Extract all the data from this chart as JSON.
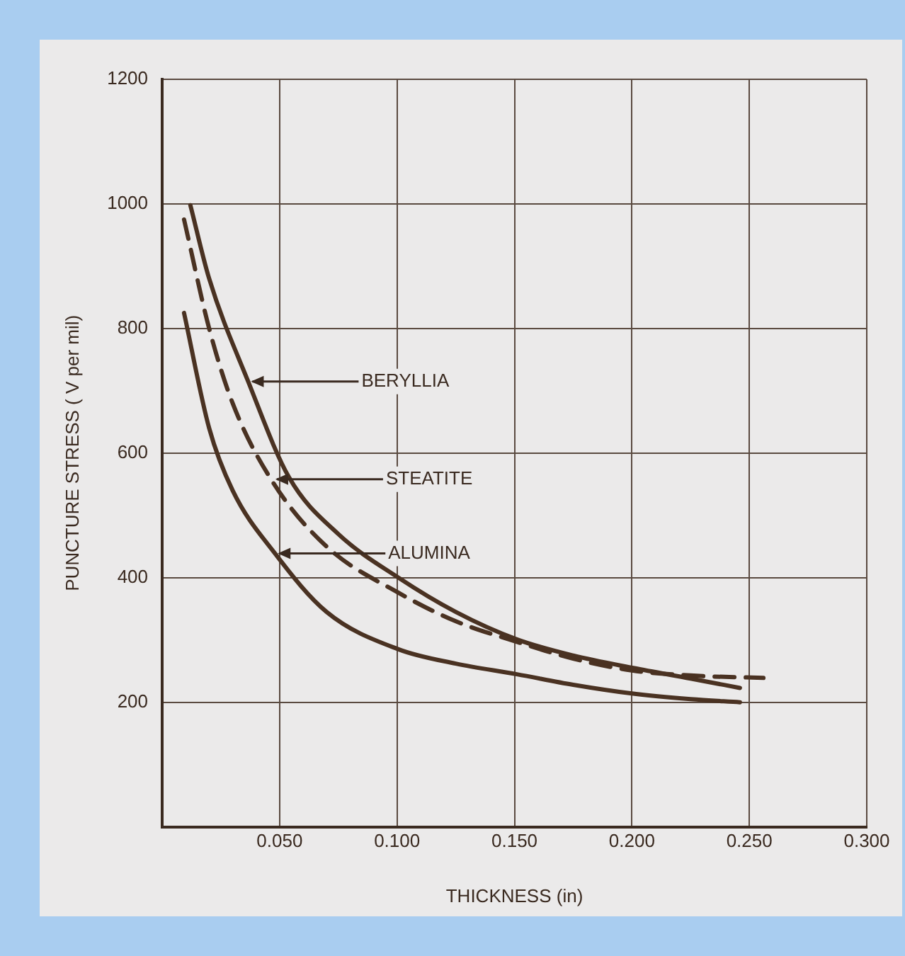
{
  "chart_data": {
    "type": "line",
    "xlabel": "THICKNESS (in)",
    "ylabel": "PUNCTURE STRESS ( V per mil)",
    "xlim": [
      0,
      0.3
    ],
    "xticks": [
      {
        "value": 0.05,
        "label": "0.050"
      },
      {
        "value": 0.1,
        "label": "0.100"
      },
      {
        "value": 0.15,
        "label": "0.150"
      },
      {
        "value": 0.2,
        "label": "0.200"
      },
      {
        "value": 0.25,
        "label": "0.250"
      },
      {
        "value": 0.3,
        "label": "0.300"
      }
    ],
    "ylim": [
      0,
      1200
    ],
    "yticks": [
      200,
      400,
      600,
      800,
      1000,
      1200
    ],
    "grid": true,
    "legend": false,
    "marker": "none",
    "series": [
      {
        "color": "#4a3222",
        "line_style": "solid",
        "x": [
          0.012,
          0.02,
          0.0366,
          0.054,
          0.075,
          0.1006,
          0.125,
          0.151,
          0.175,
          0.2006,
          0.225,
          0.246
        ],
        "values": [
          998,
          880,
          715,
          561,
          470,
          400,
          345,
          301,
          275,
          255,
          238,
          223
        ]
      },
      {
        "color": "#4a3222",
        "line_style": "dashed",
        "x": [
          0.0093,
          0.02,
          0.03,
          0.047,
          0.07,
          0.1,
          0.125,
          0.151,
          0.175,
          0.2,
          0.225,
          0.256
        ],
        "values": [
          975,
          800,
          680,
          554,
          450,
          377,
          330,
          297,
          270,
          251,
          243,
          239
        ]
      },
      {
        "color": "#4a3222",
        "line_style": "solid",
        "x": [
          0.0093,
          0.02,
          0.03,
          0.048,
          0.07,
          0.1006,
          0.125,
          0.151,
          0.175,
          0.2,
          0.225,
          0.246
        ],
        "values": [
          825,
          640,
          540,
          439,
          345,
          285,
          262,
          245,
          228,
          214,
          205,
          200
        ]
      }
    ],
    "annotations": [
      {
        "text": "BERYLLIA",
        "x": 0.0366,
        "y": 715
      },
      {
        "text": "STEATITE",
        "x": 0.047,
        "y": 558
      },
      {
        "text": "ALUMINA",
        "x": 0.048,
        "y": 439
      }
    ]
  }
}
